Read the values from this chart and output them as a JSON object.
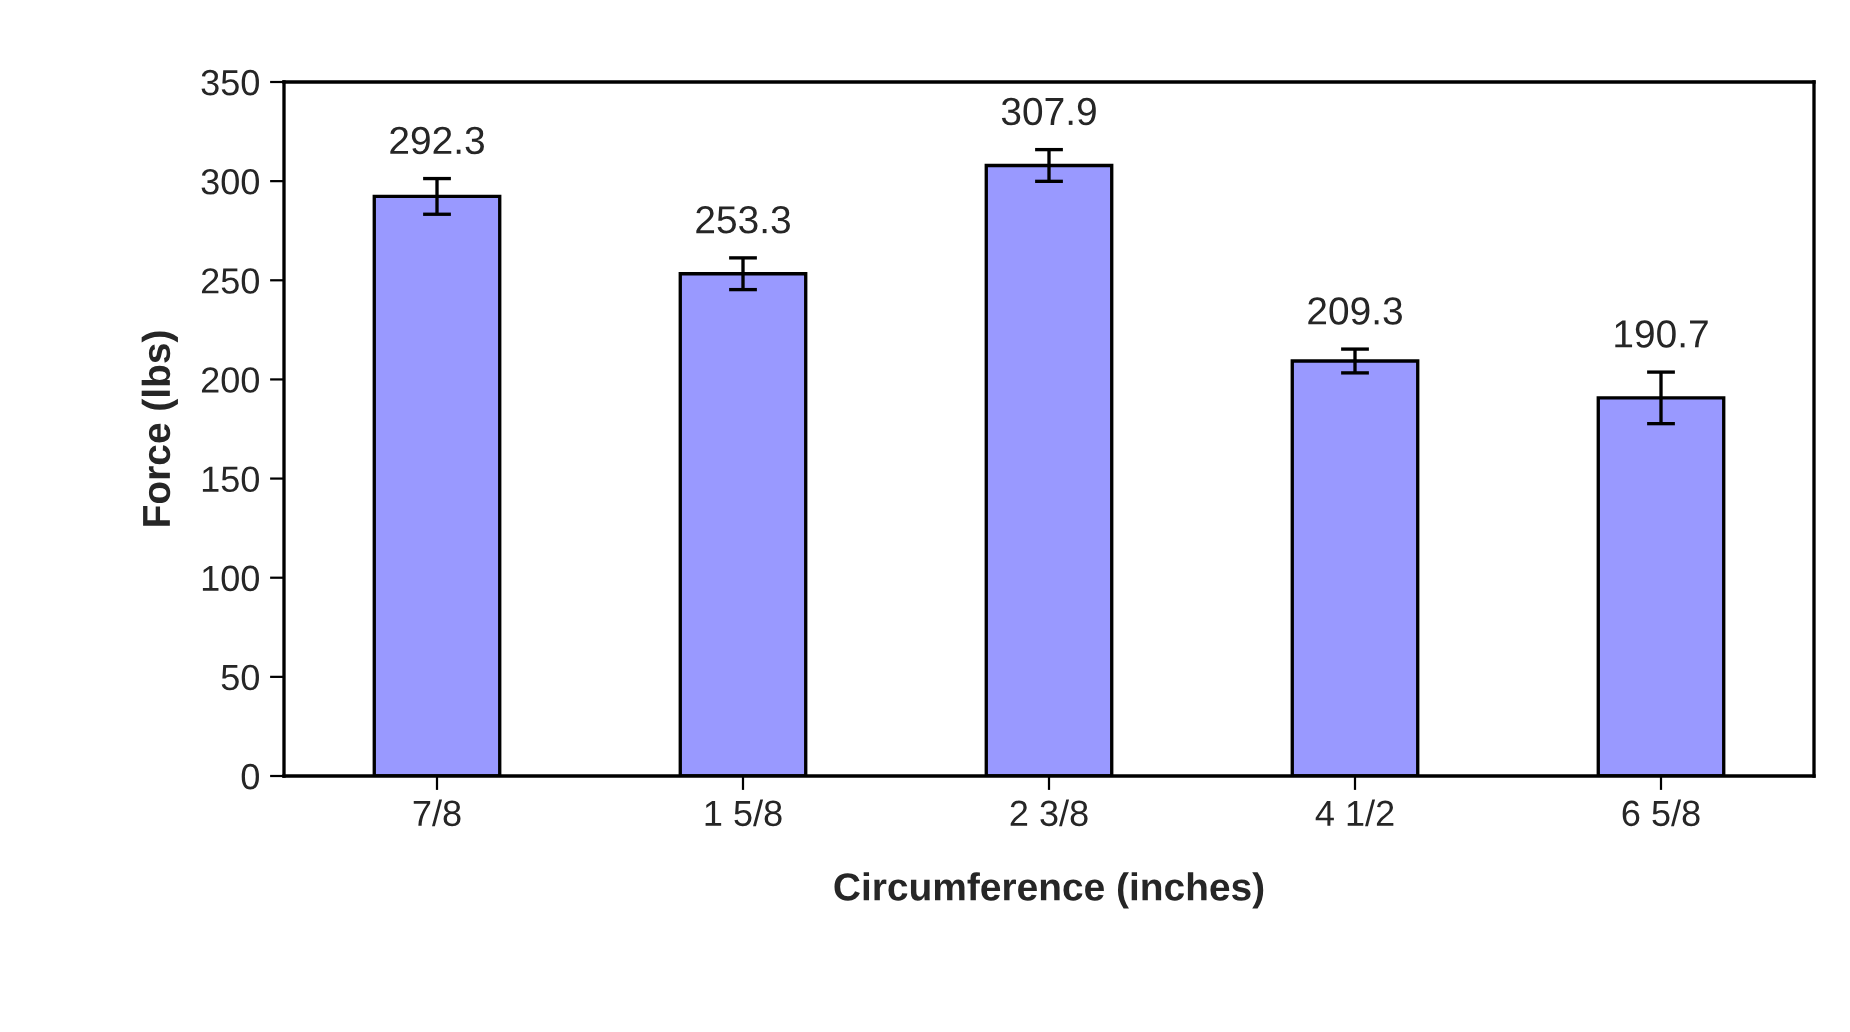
{
  "chart_data": {
    "type": "bar",
    "xlabel": "Circumference (inches)",
    "ylabel": "Force (lbs)",
    "categories": [
      "7/8",
      "1 5/8",
      "2 3/8",
      "4 1/2",
      "6 5/8"
    ],
    "values": [
      292.3,
      253.3,
      307.9,
      209.3,
      190.7
    ],
    "errors": [
      9,
      8,
      8,
      6,
      13
    ],
    "color": "#9999ff",
    "ylim": [
      0,
      350
    ],
    "yticks": [
      0,
      50,
      100,
      150,
      200,
      250,
      300,
      350
    ],
    "data_labels": true,
    "grid": false,
    "legend": false
  }
}
